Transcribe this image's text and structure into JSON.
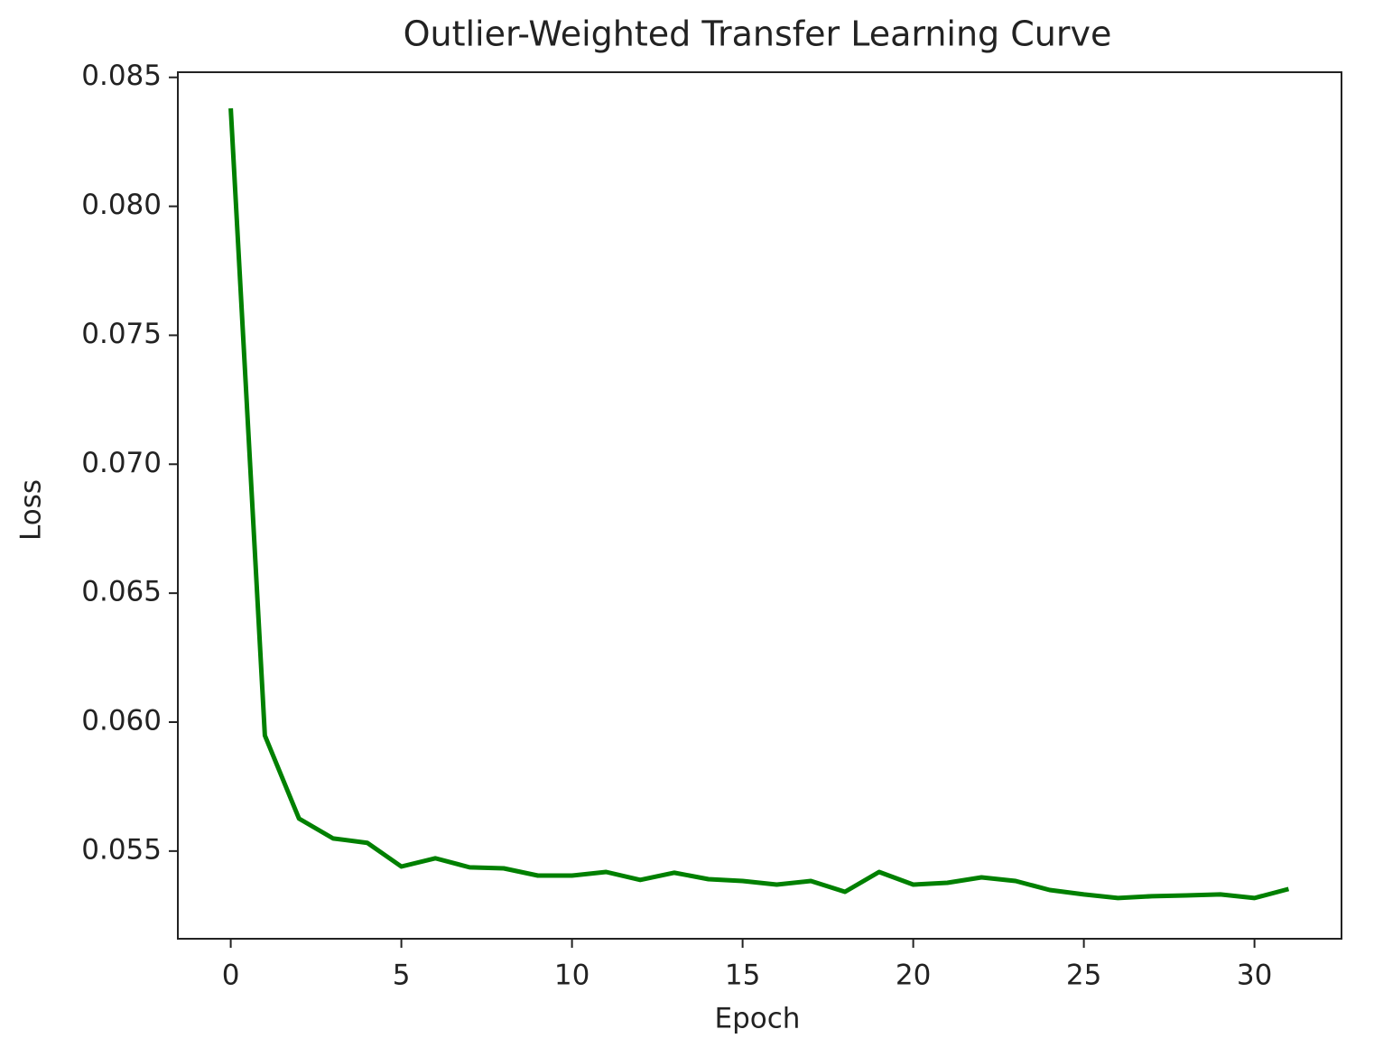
{
  "chart_data": {
    "type": "line",
    "title": "Outlier-Weighted Transfer Learning Curve",
    "x_label": "Epoch",
    "y_label": "Loss",
    "x": [
      0,
      1,
      2,
      3,
      4,
      5,
      6,
      7,
      8,
      9,
      10,
      11,
      12,
      13,
      14,
      15,
      16,
      17,
      18,
      19,
      20,
      21,
      22,
      23,
      24,
      25,
      26,
      27,
      28,
      29,
      30,
      31
    ],
    "series": [
      {
        "color": "#008000",
        "values": [
          0.0838,
          0.05948,
          0.05626,
          0.05549,
          0.05532,
          0.0544,
          0.05472,
          0.05437,
          0.05433,
          0.05405,
          0.05405,
          0.05419,
          0.05388,
          0.05416,
          0.05391,
          0.05384,
          0.0537,
          0.05384,
          0.05342,
          0.05419,
          0.0537,
          0.05377,
          0.05398,
          0.05384,
          0.05349,
          0.05332,
          0.05318,
          0.05325,
          0.05328,
          0.05332,
          0.05318,
          0.05353
        ]
      }
    ],
    "xlim": [
      -1.55,
      32.55
    ],
    "xticks": [
      0,
      5,
      10,
      15,
      20,
      25,
      30
    ],
    "ylim": [
      0.0516,
      0.0852
    ],
    "yticks": [
      {
        "value": 0.055,
        "label": "0.055"
      },
      {
        "value": 0.06,
        "label": "0.060"
      },
      {
        "value": 0.065,
        "label": "0.065"
      },
      {
        "value": 0.07,
        "label": "0.070"
      },
      {
        "value": 0.075,
        "label": "0.075"
      },
      {
        "value": 0.08,
        "label": "0.080"
      },
      {
        "value": 0.085,
        "label": "0.085"
      }
    ],
    "grid": false
  }
}
